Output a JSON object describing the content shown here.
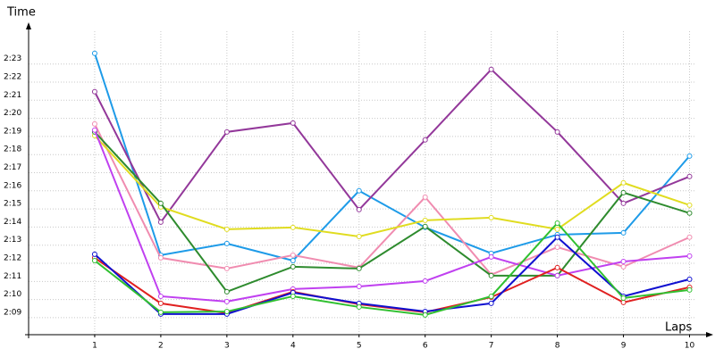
{
  "chart_data": {
    "type": "line",
    "y_label": "Time",
    "x_label": "Laps",
    "xlim": [
      0,
      10.25
    ],
    "xticks": [
      1,
      2,
      3,
      4,
      5,
      6,
      7,
      8,
      9,
      10
    ],
    "ylim": [
      128.06,
      145.3
    ],
    "yticks": [
      {
        "value": 129,
        "label": "2:09"
      },
      {
        "value": 130,
        "label": "2:10"
      },
      {
        "value": 131,
        "label": "2:11"
      },
      {
        "value": 132,
        "label": "2:12"
      },
      {
        "value": 133,
        "label": "2:13"
      },
      {
        "value": 134,
        "label": "2:14"
      },
      {
        "value": 135,
        "label": "2:15"
      },
      {
        "value": 136,
        "label": "2:16"
      },
      {
        "value": 137,
        "label": "2:17"
      },
      {
        "value": 138,
        "label": "2:18"
      },
      {
        "value": 139,
        "label": "2:19"
      },
      {
        "value": 140,
        "label": "2:20"
      },
      {
        "value": 141,
        "label": "2:21"
      },
      {
        "value": 142,
        "label": "2:22"
      },
      {
        "value": 143,
        "label": "2:23"
      }
    ],
    "grid": true,
    "x": [
      1,
      2,
      3,
      4,
      5,
      6,
      7,
      8,
      9,
      10
    ],
    "series": [
      {
        "color": "#1e9be8",
        "values": [
          143.59,
          132.45,
          133.09,
          132.15,
          136.0,
          133.98,
          132.55,
          133.58,
          133.68,
          137.92
        ]
      },
      {
        "color": "#93389a",
        "values": [
          141.47,
          134.27,
          139.25,
          139.74,
          134.96,
          138.81,
          142.7,
          139.25,
          135.31,
          136.79
        ]
      },
      {
        "color": "#f08cb0",
        "values": [
          139.69,
          132.3,
          131.71,
          132.45,
          131.76,
          135.65,
          131.37,
          132.89,
          131.81,
          133.44
        ]
      },
      {
        "color": "#e0dc20",
        "values": [
          139.05,
          135.11,
          133.88,
          133.98,
          133.48,
          134.37,
          134.52,
          133.88,
          136.44,
          135.21
        ]
      },
      {
        "color": "#2e8b2e",
        "values": [
          139.25,
          135.31,
          130.43,
          131.81,
          131.71,
          134.03,
          131.32,
          131.32,
          135.9,
          134.77
        ]
      },
      {
        "color": "#c040f0",
        "values": [
          139.35,
          130.18,
          129.89,
          130.58,
          130.72,
          131.02,
          132.35,
          131.32,
          132.1,
          132.4
        ]
      },
      {
        "color": "#e02020",
        "values": [
          132.3,
          129.79,
          129.25,
          130.43,
          129.74,
          129.3,
          130.13,
          131.76,
          129.84,
          130.68
        ]
      },
      {
        "color": "#1010d0",
        "values": [
          132.5,
          129.2,
          129.2,
          130.38,
          129.79,
          129.34,
          129.79,
          133.44,
          130.18,
          131.12
        ]
      },
      {
        "color": "#30c030",
        "values": [
          132.15,
          129.3,
          129.34,
          130.18,
          129.59,
          129.15,
          130.18,
          134.22,
          130.08,
          130.53
        ]
      }
    ]
  }
}
